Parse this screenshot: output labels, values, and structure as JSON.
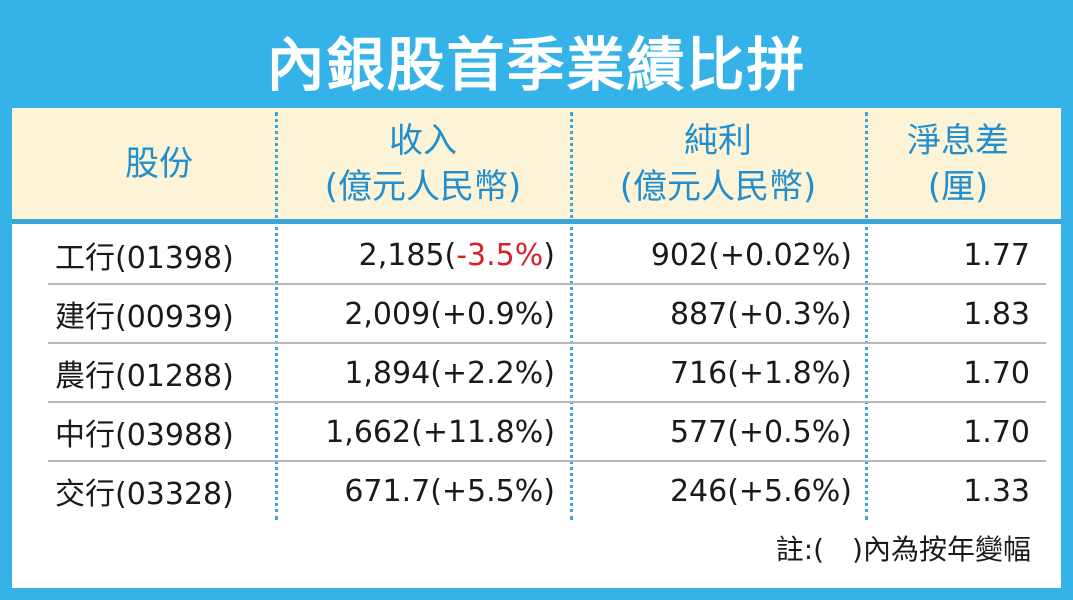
{
  "title": "內銀股首季業績比拼",
  "headers": {
    "stock": "股份",
    "revenue": [
      "收入",
      "(億元人民幣)"
    ],
    "net_profit": [
      "純利",
      "(億元人民幣)"
    ],
    "nim": [
      "淨息差",
      "(厘)"
    ]
  },
  "rows": [
    {
      "stock": "工行(01398)",
      "revenue": "2,185",
      "revenue_change": "-3.5%",
      "net_profit": "902",
      "net_change": "+0.02%",
      "nim": "1.77"
    },
    {
      "stock": "建行(00939)",
      "revenue": "2,009",
      "revenue_change": "+0.9%",
      "net_profit": "887",
      "net_change": "+0.3%",
      "nim": "1.83"
    },
    {
      "stock": "農行(01288)",
      "revenue": "1,894",
      "revenue_change": "+2.2%",
      "net_profit": "716",
      "net_change": "+1.8%",
      "nim": "1.70"
    },
    {
      "stock": "中行(03988)",
      "revenue": "1,662",
      "revenue_change": "+11.8%",
      "net_profit": "577",
      "net_change": "+0.5%",
      "nim": "1.70"
    },
    {
      "stock": "交行(03328)",
      "revenue": "671.7",
      "revenue_change": "+5.5%",
      "net_profit": "246",
      "net_change": "+5.6%",
      "nim": "1.33"
    }
  ],
  "note": "註:(　)內為按年變幅",
  "colors": {
    "accent": "#35b3e8",
    "header_bg": "#fdf3d6",
    "header_text": "#1f8fd0",
    "negative": "#d6232a"
  }
}
